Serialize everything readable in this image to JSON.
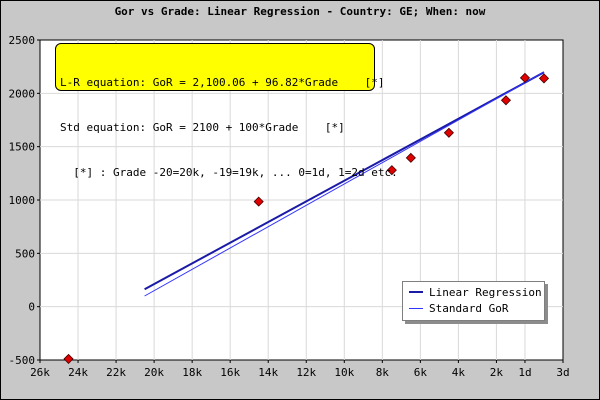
{
  "chart_data": {
    "type": "line",
    "title": "Gor vs Grade: Linear Regression - Country: GE; When: now",
    "xlabel": "",
    "ylabel": "",
    "x_tick_labels": [
      "26k",
      "24k",
      "22k",
      "20k",
      "18k",
      "16k",
      "14k",
      "12k",
      "10k",
      "8k",
      "6k",
      "4k",
      "2k",
      "1d",
      "3d"
    ],
    "x_tick_values": [
      -25.5,
      -23.5,
      -21.5,
      -19.5,
      -17.5,
      -15.5,
      -13.5,
      -11.5,
      -9.5,
      -7.5,
      -5.5,
      -3.5,
      -1.5,
      0,
      2
    ],
    "xlim": [
      -25.5,
      2
    ],
    "ylim": [
      -500,
      2500
    ],
    "y_ticks": [
      -500,
      0,
      500,
      1000,
      1500,
      2000,
      2500
    ],
    "grid": true,
    "annotation_lines": [
      "L-R equation: GoR = 2,100.06 + 96.82*Grade    [*]",
      "Std equation: GoR = 2100 + 100*Grade    [*]",
      "  [*] : Grade -20=20k, -19=19k, ... 0=1d, 1=2d etc."
    ],
    "legend_position": "bottom-right",
    "series": [
      {
        "name": "Linear Regression",
        "type": "line",
        "color": "#1a1aa6",
        "x": [
          -20,
          1
        ],
        "y": [
          163.66,
          2196.88
        ]
      },
      {
        "name": "Standard GoR",
        "type": "line",
        "color": "#3333ff",
        "x": [
          -20,
          1
        ],
        "y": [
          100,
          2200
        ]
      },
      {
        "name": "",
        "type": "scatter",
        "color": "#e00000",
        "x": [
          -24,
          -14,
          -7,
          -6,
          -4,
          -1,
          0,
          1
        ],
        "y": [
          -490,
          985,
          1280,
          1395,
          1630,
          1935,
          2145,
          2140
        ]
      }
    ]
  }
}
